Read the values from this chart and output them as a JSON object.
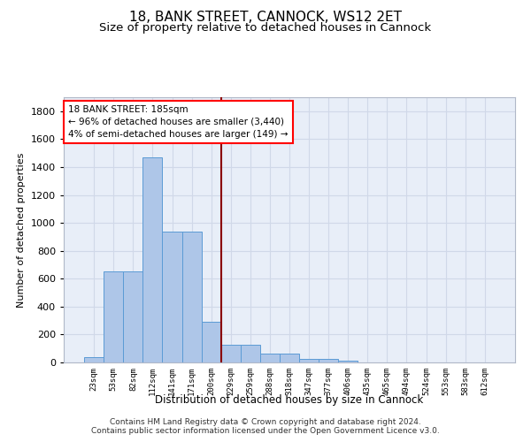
{
  "title1": "18, BANK STREET, CANNOCK, WS12 2ET",
  "title2": "Size of property relative to detached houses in Cannock",
  "xlabel": "Distribution of detached houses by size in Cannock",
  "ylabel": "Number of detached properties",
  "footer1": "Contains HM Land Registry data © Crown copyright and database right 2024.",
  "footer2": "Contains public sector information licensed under the Open Government Licence v3.0.",
  "bar_labels": [
    "23sqm",
    "53sqm",
    "82sqm",
    "112sqm",
    "141sqm",
    "171sqm",
    "200sqm",
    "229sqm",
    "259sqm",
    "288sqm",
    "318sqm",
    "347sqm",
    "377sqm",
    "406sqm",
    "435sqm",
    "465sqm",
    "494sqm",
    "524sqm",
    "553sqm",
    "583sqm",
    "612sqm"
  ],
  "bar_values": [
    38,
    650,
    650,
    1470,
    935,
    935,
    290,
    125,
    125,
    65,
    65,
    25,
    25,
    15,
    0,
    0,
    0,
    0,
    0,
    0,
    0
  ],
  "bar_color": "#aec6e8",
  "bar_edge_color": "#5b9bd5",
  "annotation_text_line1": "18 BANK STREET: 185sqm",
  "annotation_text_line2": "← 96% of detached houses are smaller (3,440)",
  "annotation_text_line3": "4% of semi-detached houses are larger (149) →",
  "vline_color": "#8b0000",
  "vline_x": 6.5,
  "ylim": [
    0,
    1900
  ],
  "yticks": [
    0,
    200,
    400,
    600,
    800,
    1000,
    1200,
    1400,
    1600,
    1800
  ],
  "background_color": "#e8eef8",
  "grid_color": "#d0d8e8",
  "title1_fontsize": 11,
  "title2_fontsize": 9.5
}
